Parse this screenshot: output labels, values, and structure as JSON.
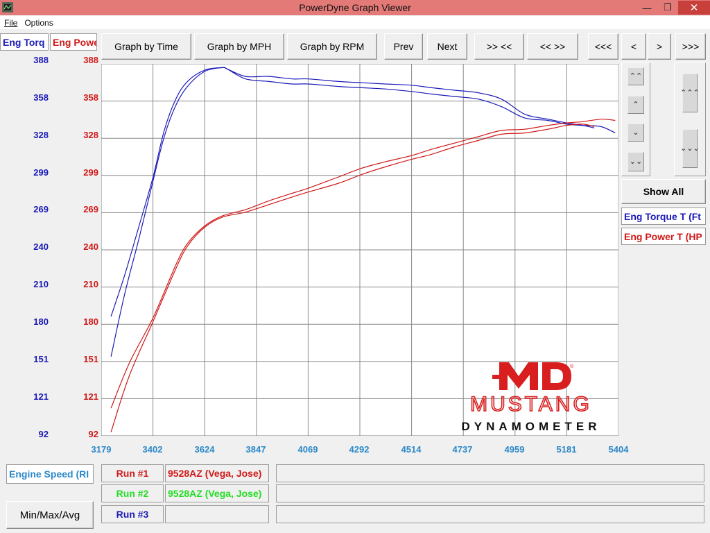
{
  "window": {
    "title": "PowerDyne Graph Viewer",
    "minimize": "—",
    "restore": "❐",
    "close": "✕"
  },
  "menu": [
    "File",
    "Options"
  ],
  "toolbar": {
    "graph_time": "Graph by Time",
    "graph_mph": "Graph by MPH",
    "graph_rpm": "Graph by RPM",
    "prev": "Prev",
    "next": "Next",
    "zoom_in": ">> <<",
    "zoom_out": "<< >>",
    "first": "<<<",
    "left": "<",
    "right": ">",
    "last": ">>>"
  },
  "axis_labels": {
    "torque": "Eng Torq",
    "power": "Eng Powe",
    "x": "Engine Speed (RI"
  },
  "legend": {
    "torque": "Eng Torque T (Ft",
    "power": "Eng Power T (HP"
  },
  "side": {
    "show_all": "Show All",
    "page_up": "⌃⌃",
    "up": "⌃",
    "down": "⌄",
    "page_down": "⌄⌄",
    "big_up": "⌃⌃⌃",
    "big_down": "⌄⌄⌄"
  },
  "runs": [
    {
      "label": "Run #1",
      "name": "9528AZ (Vega, Jose)",
      "color": "#d01818"
    },
    {
      "label": "Run #2",
      "name": "9528AZ (Vega, Jose)",
      "color": "#22dd22"
    },
    {
      "label": "Run #3",
      "name": "",
      "color": "#1a1ab8"
    }
  ],
  "minmax": "Min/Max/Avg",
  "logo": {
    "mark": "MD",
    "line1": "MUSTANG",
    "line2": "DYNAMOMETER",
    "reg": "®"
  },
  "colors": {
    "torque": "#1a1ab8",
    "power": "#d01818",
    "xaxis": "#2b88c8"
  },
  "chart_data": {
    "type": "line",
    "xlabel": "Engine Speed (RI",
    "ylabel_left": "Eng Torq",
    "ylabel_right": "Eng Powe",
    "x_ticks": [
      "3179",
      "3402",
      "3624",
      "3847",
      "4069",
      "4292",
      "4514",
      "4737",
      "4959",
      "5181",
      "5404"
    ],
    "y_ticks": [
      "388",
      "358",
      "328",
      "299",
      "269",
      "240",
      "210",
      "180",
      "151",
      "121",
      "92"
    ],
    "xlim": [
      3179,
      5404
    ],
    "ylim": [
      92,
      388
    ],
    "grid": true,
    "series": [
      {
        "name": "Eng Torque T (Ft",
        "run": "Run #1",
        "color": "#1a1ab8",
        "x": [
          3221,
          3280,
          3340,
          3402,
          3450,
          3500,
          3550,
          3624,
          3700,
          3720,
          3800,
          3900,
          4000,
          4069,
          4200,
          4300,
          4400,
          4514,
          4600,
          4700,
          4800,
          4900,
          5000,
          5100,
          5181,
          5250,
          5330,
          5390
        ],
        "y": [
          155,
          205,
          248,
          295,
          330,
          355,
          370,
          382,
          385,
          384,
          376,
          374,
          372,
          372,
          370,
          369,
          368,
          366,
          364,
          362,
          360,
          354,
          345,
          343,
          340,
          339,
          338,
          333
        ]
      },
      {
        "name": "Eng Torque T (Ft",
        "run": "Run #2",
        "color": "#1a1ab8",
        "x": [
          3221,
          3280,
          3340,
          3402,
          3450,
          3500,
          3550,
          3624,
          3700,
          3720,
          3800,
          3900,
          4000,
          4069,
          4200,
          4300,
          4400,
          4514,
          4600,
          4700,
          4800,
          4900,
          5000,
          5100,
          5181,
          5250,
          5300
        ],
        "y": [
          187,
          220,
          258,
          298,
          335,
          360,
          374,
          383,
          385,
          384,
          378,
          378,
          376,
          376,
          374,
          373,
          372,
          371,
          369,
          367,
          365,
          360,
          348,
          344,
          341,
          339,
          337
        ]
      },
      {
        "name": "Eng Power T (HP",
        "run": "Run #1",
        "color": "#d01818",
        "x": [
          3221,
          3300,
          3402,
          3500,
          3550,
          3624,
          3700,
          3800,
          3900,
          4000,
          4069,
          4200,
          4300,
          4400,
          4514,
          4600,
          4700,
          4800,
          4900,
          5000,
          5100,
          5181,
          5250,
          5300
        ],
        "y": [
          95,
          140,
          183,
          225,
          243,
          258,
          266,
          270,
          276,
          282,
          286,
          293,
          300,
          306,
          312,
          316,
          322,
          327,
          332,
          333,
          336,
          339,
          340,
          338
        ]
      },
      {
        "name": "Eng Power T (HP",
        "run": "Run #2",
        "color": "#d01818",
        "x": [
          3221,
          3300,
          3402,
          3500,
          3550,
          3624,
          3700,
          3800,
          3900,
          4000,
          4069,
          4200,
          4300,
          4400,
          4514,
          4600,
          4700,
          4800,
          4900,
          5000,
          5100,
          5181,
          5250,
          5330,
          5390
        ],
        "y": [
          114,
          150,
          186,
          228,
          245,
          259,
          267,
          272,
          279,
          285,
          289,
          298,
          305,
          310,
          315,
          320,
          325,
          330,
          335,
          336,
          339,
          341,
          342,
          344,
          343
        ]
      }
    ]
  }
}
